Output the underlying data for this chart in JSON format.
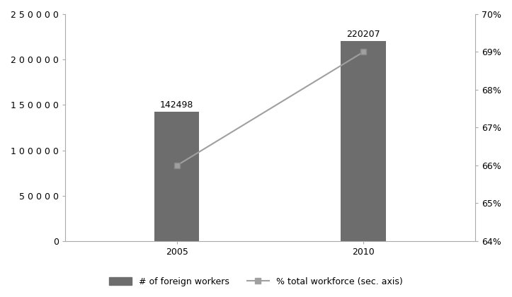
{
  "years": [
    2005,
    2010
  ],
  "bar_values": [
    142498,
    220207
  ],
  "pct_values": [
    66.0,
    69.0
  ],
  "bar_color": "#6d6d6d",
  "line_color": "#a0a0a0",
  "bar_labels": [
    "142498",
    "220207"
  ],
  "ylim_left": [
    0,
    250000
  ],
  "ylim_right": [
    64,
    70
  ],
  "yticks_left": [
    0,
    50000,
    100000,
    150000,
    200000,
    250000
  ],
  "yticks_right": [
    64,
    65,
    66,
    67,
    68,
    69,
    70
  ],
  "background_color": "#ffffff",
  "bar_width": 1.2,
  "legend_bar_label": "# of foreign workers",
  "legend_line_label": "% total workforce (sec. axis)",
  "font_size_labels": 9,
  "font_size_ticks": 9,
  "font_size_annotations": 9,
  "xlim": [
    2002,
    2013
  ]
}
